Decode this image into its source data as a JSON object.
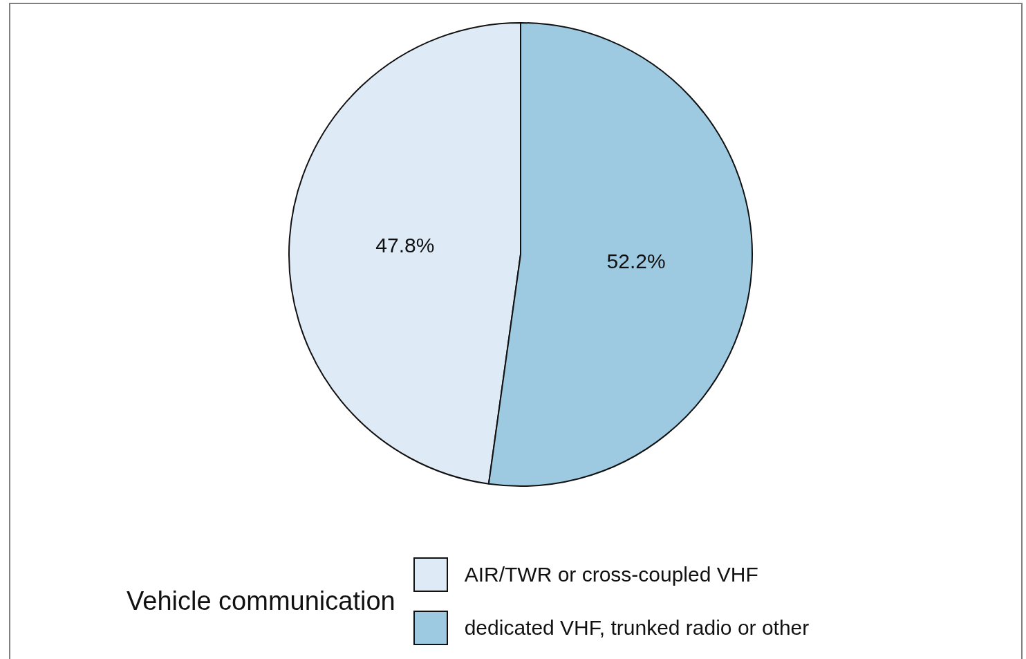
{
  "chart_data": {
    "type": "pie",
    "categories": [
      "AIR/TWR or cross-coupled VHF",
      "dedicated VHF, trunked radio or other"
    ],
    "values": [
      47.8,
      52.2
    ],
    "colors": [
      "#deebf7",
      "#9ecae1"
    ],
    "value_labels": [
      "47.8%",
      "52.2%"
    ],
    "legend": "bottom",
    "legend_title": "Vehicle communication"
  }
}
